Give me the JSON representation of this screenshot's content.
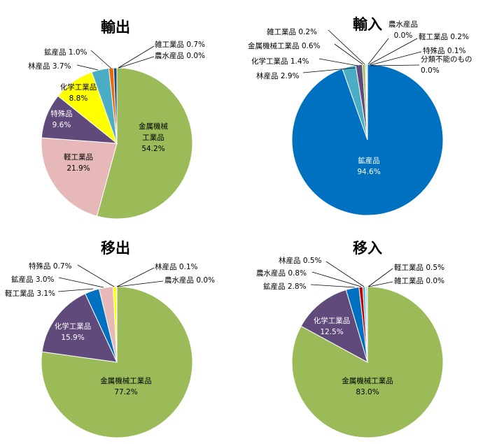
{
  "chart_data": [
    {
      "type": "pie",
      "title": "輸出",
      "slices": [
        {
          "name": "金属機械工業品",
          "value": 54.2,
          "color": "#9BBB59",
          "label_lines": [
            "金属機械",
            "工業品",
            "54.2%"
          ]
        },
        {
          "name": "軽工業品",
          "value": 21.9,
          "color": "#E6B9B8",
          "label_lines": [
            "軽工業品",
            "21.9%"
          ]
        },
        {
          "name": "特殊品",
          "value": 9.6,
          "color": "#604A7B",
          "label_lines": [
            "特殊品",
            "9.6%"
          ]
        },
        {
          "name": "化学工業品",
          "value": 8.8,
          "color": "#FFFF00",
          "label_lines": [
            "化学工業品",
            "8.8%"
          ]
        },
        {
          "name": "林産品",
          "value": 3.7,
          "color": "#4BACC6",
          "label_lines": [
            "林産品 3.7%"
          ]
        },
        {
          "name": "鉱産品",
          "value": 1.0,
          "color": "#E46C0A",
          "label_lines": [
            "鉱産品 1.0%"
          ]
        },
        {
          "name": "雑工業品",
          "value": 0.7,
          "color": "#1F497D",
          "label_lines": [
            "雑工業品 0.7%"
          ]
        },
        {
          "name": "農水産品",
          "value": 0.0,
          "color": "#0070C0",
          "label_lines": [
            "農水産品 0.0%"
          ]
        }
      ]
    },
    {
      "type": "pie",
      "title": "輸入",
      "slices": [
        {
          "name": "鉱産品",
          "value": 94.6,
          "color": "#0070C0",
          "label_lines": [
            "鉱産品",
            "94.6%"
          ]
        },
        {
          "name": "林産品",
          "value": 2.9,
          "color": "#4BACC6",
          "label_lines": [
            "林産品 2.9%"
          ]
        },
        {
          "name": "化学工業品",
          "value": 1.4,
          "color": "#604A7B",
          "label_lines": [
            "化学工業品 1.4%"
          ]
        },
        {
          "name": "金属機械工業品",
          "value": 0.6,
          "color": "#9BBB59",
          "label_lines": [
            "金属機械工業品 0.6%"
          ]
        },
        {
          "name": "雑工業品",
          "value": 0.2,
          "color": "#1F497D",
          "label_lines": [
            "雑工業品 0.2%"
          ]
        },
        {
          "name": "農水産品",
          "value": 0.0,
          "color": "#E46C0A",
          "label_lines": [
            "農水産品",
            "0.0%"
          ]
        },
        {
          "name": "軽工業品",
          "value": 0.2,
          "color": "#E6B9B8",
          "label_lines": [
            "軽工業品 0.2%"
          ]
        },
        {
          "name": "特殊品",
          "value": 0.1,
          "color": "#FFFF00",
          "label_lines": [
            "特殊品 0.1%"
          ]
        },
        {
          "name": "分類不能のもの",
          "value": 0.0,
          "color": "#7F7F7F",
          "label_lines": [
            "分類不能のもの",
            "0.0%"
          ]
        }
      ]
    },
    {
      "type": "pie",
      "title": "移出",
      "slices": [
        {
          "name": "金属機械工業品",
          "value": 77.2,
          "color": "#9BBB59",
          "label_lines": [
            "金属機械工業品",
            "77.2%"
          ]
        },
        {
          "name": "化学工業品",
          "value": 15.9,
          "color": "#604A7B",
          "label_lines": [
            "化学工業品",
            "15.9%"
          ]
        },
        {
          "name": "軽工業品",
          "value": 3.1,
          "color": "#0070C0",
          "label_lines": [
            "軽工業品 3.1%"
          ]
        },
        {
          "name": "鉱産品",
          "value": 3.0,
          "color": "#E6B9B8",
          "label_lines": [
            "鉱産品 3.0%"
          ]
        },
        {
          "name": "特殊品",
          "value": 0.7,
          "color": "#FFFF00",
          "label_lines": [
            "特殊品 0.7%"
          ]
        },
        {
          "name": "林産品",
          "value": 0.1,
          "color": "#4BACC6",
          "label_lines": [
            "林産品 0.1%"
          ]
        },
        {
          "name": "農水産品",
          "value": 0.0,
          "color": "#E46C0A",
          "label_lines": [
            "農水産品 0.0%"
          ]
        }
      ]
    },
    {
      "type": "pie",
      "title": "移入",
      "slices": [
        {
          "name": "金属機械工業品",
          "value": 83.0,
          "color": "#9BBB59",
          "label_lines": [
            "金属機械工業品",
            "83.0%"
          ]
        },
        {
          "name": "化学工業品",
          "value": 12.5,
          "color": "#604A7B",
          "label_lines": [
            "化学工業品",
            "12.5%"
          ]
        },
        {
          "name": "鉱産品",
          "value": 2.8,
          "color": "#0070C0",
          "label_lines": [
            "鉱産品 2.8%"
          ]
        },
        {
          "name": "農水産品",
          "value": 0.8,
          "color": "#C00000",
          "label_lines": [
            "農水産品 0.8%"
          ]
        },
        {
          "name": "林産品",
          "value": 0.5,
          "color": "#4BACC6",
          "label_lines": [
            "林産品 0.5%"
          ]
        },
        {
          "name": "軽工業品",
          "value": 0.5,
          "color": "#B7DEE8",
          "label_lines": [
            "軽工業品 0.5%"
          ]
        },
        {
          "name": "雑工業品",
          "value": 0.0,
          "color": "#E46C0A",
          "label_lines": [
            "雑工業品 0.0%"
          ]
        }
      ]
    }
  ]
}
